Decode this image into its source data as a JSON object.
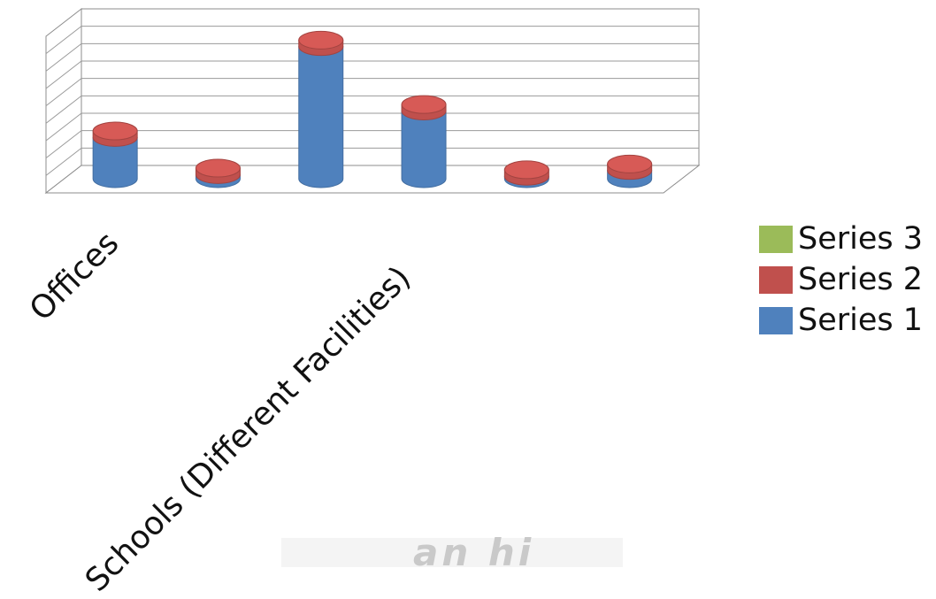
{
  "chart_data": {
    "type": "bar",
    "style": "3d-cylinder",
    "categories": [
      "Offices",
      "",
      "Schools (Different Facilities)",
      "",
      "",
      ""
    ],
    "series": [
      {
        "name": "Series 1",
        "color": "#4f81bd",
        "values": [
          50,
          5,
          160,
          82,
          3,
          10
        ]
      },
      {
        "name": "Series 2",
        "color": "#c0504d",
        "values": [
          6,
          6,
          6,
          6,
          6,
          6
        ]
      },
      {
        "name": "Series 3",
        "color": "#9bbb59",
        "values": [
          0,
          0,
          0,
          0,
          0,
          0
        ]
      }
    ],
    "ylim": [
      0,
      180
    ],
    "grid": true,
    "legend_position": "right",
    "legend_order": [
      "Series 3",
      "Series 2",
      "Series 1"
    ]
  },
  "watermark": "an hi"
}
